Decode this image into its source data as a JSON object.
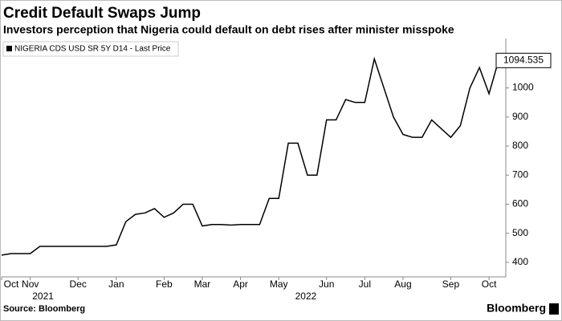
{
  "chart_data": {
    "type": "line",
    "title": "Credit Default Swaps Jump",
    "subtitle": "Investors perception that Nigeria could default on debt rises after minister misspoke",
    "source": "Source: Bloomberg",
    "brand": "Bloomberg",
    "categories": [
      "Oct",
      null,
      null,
      "Nov",
      null,
      null,
      null,
      null,
      "Dec",
      null,
      null,
      null,
      "Jan",
      null,
      null,
      null,
      null,
      "Feb",
      null,
      null,
      null,
      "Mar",
      null,
      null,
      null,
      "Apr",
      null,
      null,
      null,
      "May",
      null,
      null,
      null,
      null,
      "Jun",
      null,
      null,
      null,
      "Jul",
      null,
      null,
      null,
      "Aug",
      null,
      null,
      null,
      null,
      "Sep",
      null,
      null,
      null,
      "Oct",
      null
    ],
    "x_groups": [
      {
        "label": "2021",
        "span": [
          0,
          8
        ]
      },
      {
        "label": "2022",
        "span": [
          12,
          51
        ]
      }
    ],
    "series": [
      {
        "name": "NIGERIA CDS USD SR 5Y D14 - Last Price",
        "color": "#000000",
        "values": [
          425,
          430,
          430,
          430,
          455,
          455,
          455,
          455,
          455,
          455,
          455,
          455,
          460,
          540,
          565,
          570,
          585,
          555,
          570,
          600,
          600,
          525,
          530,
          530,
          528,
          530,
          530,
          530,
          620,
          620,
          810,
          810,
          700,
          700,
          890,
          890,
          960,
          950,
          950,
          1100,
          1000,
          900,
          840,
          830,
          830,
          890,
          860,
          830,
          870,
          1000,
          1070,
          980,
          1094.535
        ]
      }
    ],
    "ylim": [
      350,
      1170
    ],
    "yticks": [
      400,
      500,
      600,
      700,
      800,
      900,
      1000
    ],
    "grid": false
  }
}
